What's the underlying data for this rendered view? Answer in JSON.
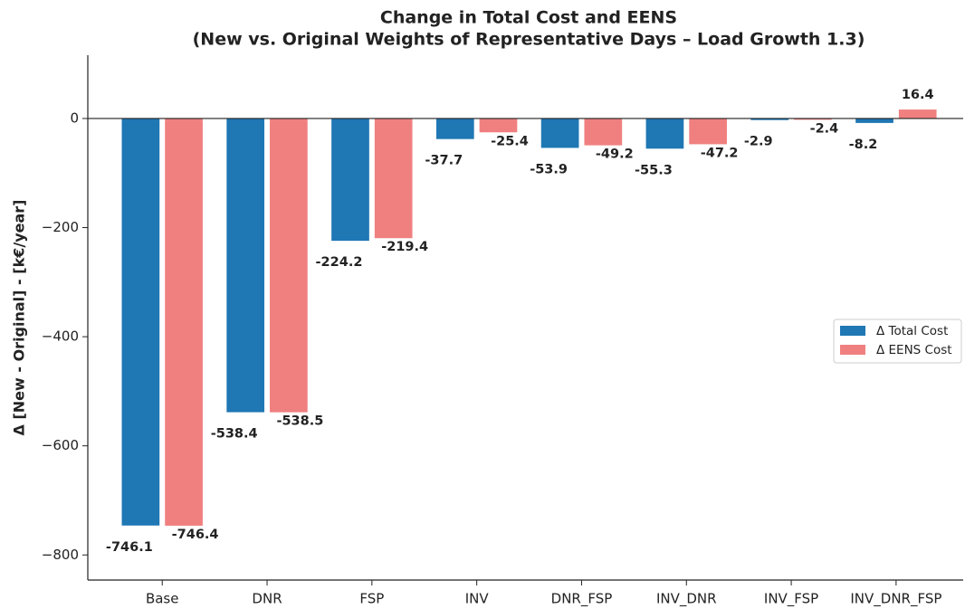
{
  "chart_data": {
    "type": "bar",
    "title": [
      "Change in Total Cost and EENS",
      "(New vs. Original Weights of Representative Days – Load Growth 1.3)"
    ],
    "ylabel": "Δ [New - Original] - [k€/year]",
    "categories": [
      "Base",
      "DNR",
      "FSP",
      "INV",
      "DNR_FSP",
      "INV_DNR",
      "INV_FSP",
      "INV_DNR_FSP"
    ],
    "series": [
      {
        "name": "Δ Total Cost",
        "color": "#1f77b4",
        "values": [
          -746.1,
          -538.4,
          -224.2,
          -37.7,
          -53.9,
          -55.3,
          -2.9,
          -8.2
        ]
      },
      {
        "name": "Δ EENS Cost",
        "color": "#f08080",
        "values": [
          -746.4,
          -538.5,
          -219.4,
          -25.4,
          -49.2,
          -47.2,
          -2.4,
          16.4
        ]
      }
    ],
    "ylim": [
      -846,
      116
    ],
    "yticks": [
      {
        "value": 0,
        "label": "0"
      },
      {
        "value": -200,
        "label": "−200"
      },
      {
        "value": -400,
        "label": "−400"
      },
      {
        "value": -600,
        "label": "−600"
      },
      {
        "value": -800,
        "label": "−800"
      }
    ],
    "legend": "center right",
    "grid": false
  }
}
